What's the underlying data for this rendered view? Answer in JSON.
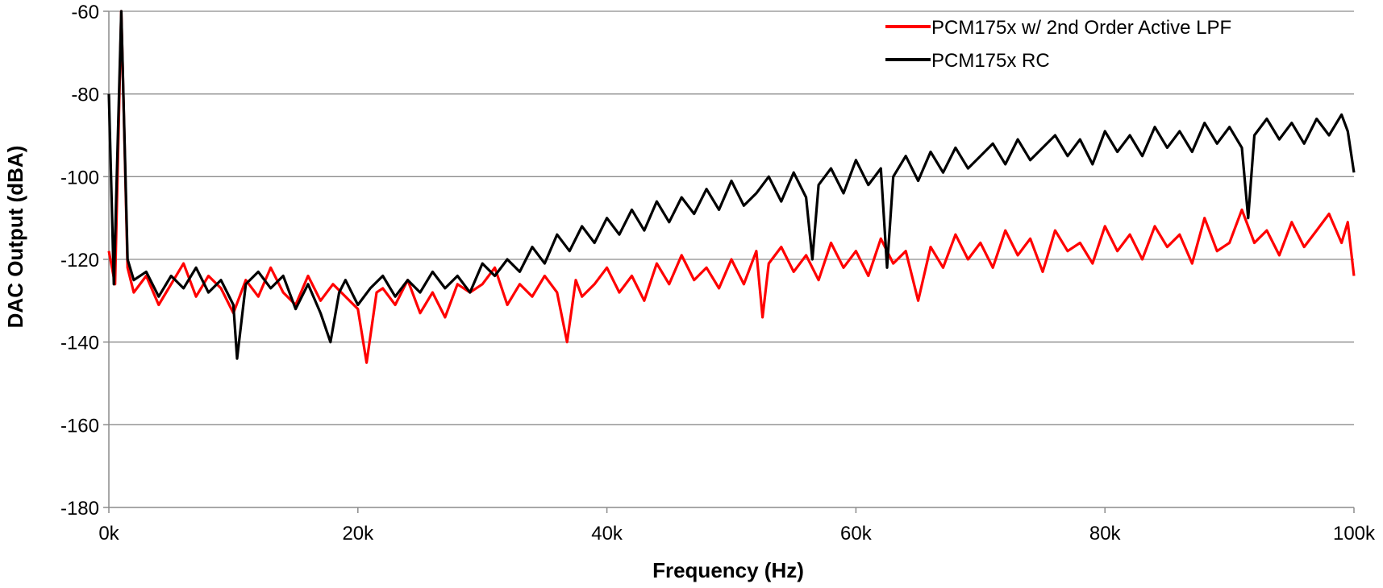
{
  "chart_data": {
    "type": "line",
    "title": "",
    "xlabel": "Frequency (Hz)",
    "ylabel": "DAC Output (dBA)",
    "xlim": [
      0,
      100000
    ],
    "ylim": [
      -180,
      -60
    ],
    "x_ticks": [
      {
        "value": 0,
        "label": "0k"
      },
      {
        "value": 20000,
        "label": "20k"
      },
      {
        "value": 40000,
        "label": "40k"
      },
      {
        "value": 60000,
        "label": "60k"
      },
      {
        "value": 80000,
        "label": "80k"
      },
      {
        "value": 100000,
        "label": "100k"
      }
    ],
    "y_ticks": [
      {
        "value": -60,
        "label": "-60"
      },
      {
        "value": -80,
        "label": "-80"
      },
      {
        "value": -100,
        "label": "-100"
      },
      {
        "value": -120,
        "label": "-120"
      },
      {
        "value": -140,
        "label": "-140"
      },
      {
        "value": -160,
        "label": "-160"
      },
      {
        "value": -180,
        "label": "-180"
      }
    ],
    "grid": "horizontal",
    "legend_position": "top-right",
    "series": [
      {
        "name": "PCM175x w/ 2nd Order Active LPF",
        "color": "#ff0000",
        "points": [
          [
            0,
            -118
          ],
          [
            500,
            -126
          ],
          [
            1000,
            -60
          ],
          [
            1500,
            -122
          ],
          [
            2000,
            -128
          ],
          [
            3000,
            -124
          ],
          [
            4000,
            -131
          ],
          [
            5000,
            -126
          ],
          [
            6000,
            -121
          ],
          [
            7000,
            -129
          ],
          [
            8000,
            -124
          ],
          [
            9000,
            -127
          ],
          [
            10000,
            -133
          ],
          [
            11000,
            -125
          ],
          [
            12000,
            -129
          ],
          [
            13000,
            -122
          ],
          [
            14000,
            -128
          ],
          [
            15000,
            -131
          ],
          [
            16000,
            -124
          ],
          [
            17000,
            -130
          ],
          [
            18000,
            -126
          ],
          [
            19000,
            -129
          ],
          [
            20000,
            -132
          ],
          [
            20700,
            -145
          ],
          [
            21500,
            -128
          ],
          [
            22000,
            -127
          ],
          [
            23000,
            -131
          ],
          [
            24000,
            -125
          ],
          [
            25000,
            -133
          ],
          [
            26000,
            -128
          ],
          [
            27000,
            -134
          ],
          [
            28000,
            -126
          ],
          [
            29000,
            -128
          ],
          [
            30000,
            -126
          ],
          [
            31000,
            -122
          ],
          [
            32000,
            -131
          ],
          [
            33000,
            -126
          ],
          [
            34000,
            -129
          ],
          [
            35000,
            -124
          ],
          [
            36000,
            -128
          ],
          [
            36800,
            -140
          ],
          [
            37500,
            -125
          ],
          [
            38000,
            -129
          ],
          [
            39000,
            -126
          ],
          [
            40000,
            -122
          ],
          [
            41000,
            -128
          ],
          [
            42000,
            -124
          ],
          [
            43000,
            -130
          ],
          [
            44000,
            -121
          ],
          [
            45000,
            -126
          ],
          [
            46000,
            -119
          ],
          [
            47000,
            -125
          ],
          [
            48000,
            -122
          ],
          [
            49000,
            -127
          ],
          [
            50000,
            -120
          ],
          [
            51000,
            -126
          ],
          [
            52000,
            -118
          ],
          [
            52500,
            -134
          ],
          [
            53000,
            -121
          ],
          [
            54000,
            -117
          ],
          [
            55000,
            -123
          ],
          [
            56000,
            -119
          ],
          [
            57000,
            -125
          ],
          [
            58000,
            -116
          ],
          [
            59000,
            -122
          ],
          [
            60000,
            -118
          ],
          [
            61000,
            -124
          ],
          [
            62000,
            -115
          ],
          [
            63000,
            -121
          ],
          [
            64000,
            -118
          ],
          [
            65000,
            -130
          ],
          [
            66000,
            -117
          ],
          [
            67000,
            -122
          ],
          [
            68000,
            -114
          ],
          [
            69000,
            -120
          ],
          [
            70000,
            -116
          ],
          [
            71000,
            -122
          ],
          [
            72000,
            -113
          ],
          [
            73000,
            -119
          ],
          [
            74000,
            -115
          ],
          [
            75000,
            -123
          ],
          [
            76000,
            -113
          ],
          [
            77000,
            -118
          ],
          [
            78000,
            -116
          ],
          [
            79000,
            -121
          ],
          [
            80000,
            -112
          ],
          [
            81000,
            -118
          ],
          [
            82000,
            -114
          ],
          [
            83000,
            -120
          ],
          [
            84000,
            -112
          ],
          [
            85000,
            -117
          ],
          [
            86000,
            -114
          ],
          [
            87000,
            -121
          ],
          [
            88000,
            -110
          ],
          [
            89000,
            -118
          ],
          [
            90000,
            -116
          ],
          [
            91000,
            -108
          ],
          [
            92000,
            -116
          ],
          [
            93000,
            -113
          ],
          [
            94000,
            -119
          ],
          [
            95000,
            -111
          ],
          [
            96000,
            -117
          ],
          [
            97000,
            -113
          ],
          [
            98000,
            -109
          ],
          [
            99000,
            -116
          ],
          [
            99500,
            -111
          ],
          [
            100000,
            -124
          ]
        ]
      },
      {
        "name": "PCM175x RC",
        "color": "#000000",
        "points": [
          [
            0,
            -80
          ],
          [
            400,
            -126
          ],
          [
            1000,
            -60
          ],
          [
            1500,
            -120
          ],
          [
            2000,
            -125
          ],
          [
            3000,
            -123
          ],
          [
            4000,
            -129
          ],
          [
            5000,
            -124
          ],
          [
            6000,
            -127
          ],
          [
            7000,
            -122
          ],
          [
            8000,
            -128
          ],
          [
            9000,
            -125
          ],
          [
            10000,
            -131
          ],
          [
            10300,
            -144
          ],
          [
            11000,
            -126
          ],
          [
            12000,
            -123
          ],
          [
            13000,
            -127
          ],
          [
            14000,
            -124
          ],
          [
            15000,
            -132
          ],
          [
            16000,
            -126
          ],
          [
            17000,
            -133
          ],
          [
            17800,
            -140
          ],
          [
            18500,
            -128
          ],
          [
            19000,
            -125
          ],
          [
            20000,
            -131
          ],
          [
            21000,
            -127
          ],
          [
            22000,
            -124
          ],
          [
            23000,
            -129
          ],
          [
            24000,
            -125
          ],
          [
            25000,
            -128
          ],
          [
            26000,
            -123
          ],
          [
            27000,
            -127
          ],
          [
            28000,
            -124
          ],
          [
            29000,
            -128
          ],
          [
            30000,
            -121
          ],
          [
            31000,
            -124
          ],
          [
            32000,
            -120
          ],
          [
            33000,
            -123
          ],
          [
            34000,
            -117
          ],
          [
            35000,
            -121
          ],
          [
            36000,
            -114
          ],
          [
            37000,
            -118
          ],
          [
            38000,
            -112
          ],
          [
            39000,
            -116
          ],
          [
            40000,
            -110
          ],
          [
            41000,
            -114
          ],
          [
            42000,
            -108
          ],
          [
            43000,
            -113
          ],
          [
            44000,
            -106
          ],
          [
            45000,
            -111
          ],
          [
            46000,
            -105
          ],
          [
            47000,
            -109
          ],
          [
            48000,
            -103
          ],
          [
            49000,
            -108
          ],
          [
            50000,
            -101
          ],
          [
            51000,
            -107
          ],
          [
            52000,
            -104
          ],
          [
            53000,
            -100
          ],
          [
            54000,
            -106
          ],
          [
            55000,
            -99
          ],
          [
            56000,
            -105
          ],
          [
            56500,
            -120
          ],
          [
            57000,
            -102
          ],
          [
            58000,
            -98
          ],
          [
            59000,
            -104
          ],
          [
            60000,
            -96
          ],
          [
            61000,
            -102
          ],
          [
            62000,
            -98
          ],
          [
            62500,
            -122
          ],
          [
            63000,
            -100
          ],
          [
            64000,
            -95
          ],
          [
            65000,
            -101
          ],
          [
            66000,
            -94
          ],
          [
            67000,
            -99
          ],
          [
            68000,
            -93
          ],
          [
            69000,
            -98
          ],
          [
            70000,
            -95
          ],
          [
            71000,
            -92
          ],
          [
            72000,
            -97
          ],
          [
            73000,
            -91
          ],
          [
            74000,
            -96
          ],
          [
            75000,
            -93
          ],
          [
            76000,
            -90
          ],
          [
            77000,
            -95
          ],
          [
            78000,
            -91
          ],
          [
            79000,
            -97
          ],
          [
            80000,
            -89
          ],
          [
            81000,
            -94
          ],
          [
            82000,
            -90
          ],
          [
            83000,
            -95
          ],
          [
            84000,
            -88
          ],
          [
            85000,
            -93
          ],
          [
            86000,
            -89
          ],
          [
            87000,
            -94
          ],
          [
            88000,
            -87
          ],
          [
            89000,
            -92
          ],
          [
            90000,
            -88
          ],
          [
            91000,
            -93
          ],
          [
            91500,
            -110
          ],
          [
            92000,
            -90
          ],
          [
            93000,
            -86
          ],
          [
            94000,
            -91
          ],
          [
            95000,
            -87
          ],
          [
            96000,
            -92
          ],
          [
            97000,
            -86
          ],
          [
            98000,
            -90
          ],
          [
            99000,
            -85
          ],
          [
            99500,
            -89
          ],
          [
            100000,
            -99
          ]
        ]
      }
    ]
  }
}
